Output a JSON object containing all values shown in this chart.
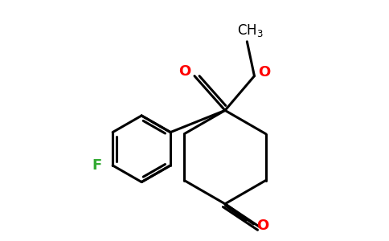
{
  "background_color": "#ffffff",
  "bond_color": "#000000",
  "bond_width": 2.2,
  "atom_F_color": "#33aa33",
  "atom_O_color": "#ff0000",
  "atom_C_color": "#000000",
  "figsize": [
    4.84,
    3.0
  ],
  "dpi": 100,
  "xlim": [
    0,
    9.5
  ],
  "ylim": [
    0,
    5.9
  ]
}
